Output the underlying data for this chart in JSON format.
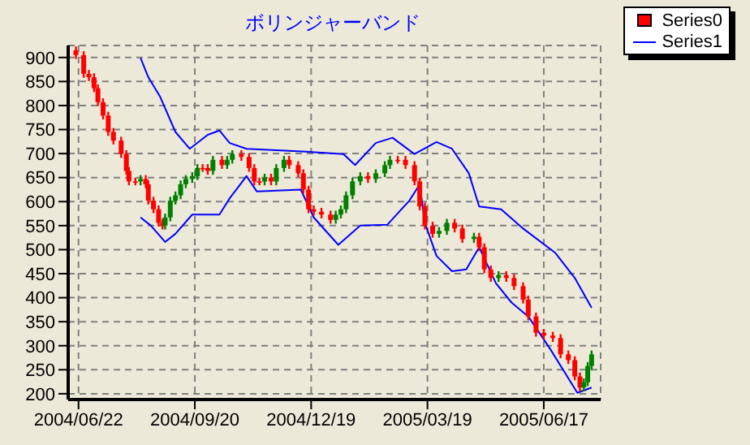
{
  "chart_data": {
    "type": "candlestick",
    "title": "ボリンジャーバンド",
    "grid": true,
    "legend": "top right",
    "xlim": [
      "2004-06-14",
      "2005-07-31"
    ],
    "xticks": [
      {
        "value": "2004-06-22",
        "label": "2004/06/22"
      },
      {
        "value": "2004-09-20",
        "label": "2004/09/20"
      },
      {
        "value": "2004-12-19",
        "label": "2004/12/19"
      },
      {
        "value": "2005-03-19",
        "label": "2005/03/19"
      },
      {
        "value": "2005-06-17",
        "label": "2005/06/17"
      }
    ],
    "ylim": [
      188,
      925
    ],
    "yticks": [
      200,
      250,
      300,
      350,
      400,
      450,
      500,
      550,
      600,
      650,
      700,
      750,
      800,
      850,
      900
    ],
    "series": [
      {
        "name": "Series0",
        "color": "#ff0000",
        "x": [
          "2004-06-20",
          "2004-06-26",
          "2004-06-30",
          "2004-07-04",
          "2004-07-07",
          "2004-07-11",
          "2004-07-15",
          "2004-07-19",
          "2004-07-25",
          "2004-07-29",
          "2004-07-31",
          "2004-08-05",
          "2004-08-09",
          "2004-08-13",
          "2004-08-15",
          "2004-08-19",
          "2004-08-23",
          "2004-08-26",
          "2004-08-28",
          "2004-09-01",
          "2004-09-05",
          "2004-09-09",
          "2004-09-13",
          "2004-09-18",
          "2004-09-22",
          "2004-09-26",
          "2004-09-30",
          "2004-10-04",
          "2004-10-11",
          "2004-10-15",
          "2004-10-19",
          "2004-10-26",
          "2004-11-01",
          "2004-11-05",
          "2004-11-09",
          "2004-11-13",
          "2004-11-18",
          "2004-11-22",
          "2004-11-28",
          "2004-12-02",
          "2004-12-09",
          "2004-12-13",
          "2004-12-17",
          "2004-12-21",
          "2004-12-27",
          "2005-01-03",
          "2005-01-07",
          "2005-01-11",
          "2005-01-15",
          "2005-01-20",
          "2005-01-26",
          "2005-02-01",
          "2005-02-07",
          "2005-02-14",
          "2005-02-18",
          "2005-02-24",
          "2005-03-02",
          "2005-03-09",
          "2005-03-13",
          "2005-03-17",
          "2005-03-23",
          "2005-03-28",
          "2005-04-03",
          "2005-04-09",
          "2005-04-15",
          "2005-04-24",
          "2005-04-28",
          "2005-05-02",
          "2005-05-07",
          "2005-05-13",
          "2005-05-19",
          "2005-05-25",
          "2005-06-01",
          "2005-06-05",
          "2005-06-11",
          "2005-06-17",
          "2005-06-24",
          "2005-06-30",
          "2005-07-06",
          "2005-07-11",
          "2005-07-15",
          "2005-07-18",
          "2005-07-21",
          "2005-07-24"
        ],
        "ohlc": [
          [
            915,
            923,
            897,
            905
          ],
          [
            905,
            913,
            858,
            866
          ],
          [
            866,
            874,
            851,
            859
          ],
          [
            859,
            867,
            828,
            836
          ],
          [
            836,
            844,
            799,
            807
          ],
          [
            807,
            815,
            771,
            779
          ],
          [
            779,
            787,
            737,
            745
          ],
          [
            745,
            753,
            719,
            727
          ],
          [
            727,
            735,
            691,
            699
          ],
          [
            699,
            707,
            656,
            664
          ],
          [
            664,
            672,
            634,
            642
          ],
          [
            642,
            650,
            634,
            642
          ],
          [
            642,
            655,
            634,
            647
          ],
          [
            647,
            655,
            628,
            636
          ],
          [
            636,
            644,
            594,
            602
          ],
          [
            602,
            610,
            576,
            584
          ],
          [
            584,
            592,
            548,
            556
          ],
          [
            556,
            564,
            542,
            550
          ],
          [
            550,
            575,
            542,
            567
          ],
          [
            567,
            610,
            559,
            602
          ],
          [
            602,
            621,
            594,
            613
          ],
          [
            613,
            644,
            605,
            636
          ],
          [
            636,
            655,
            628,
            647
          ],
          [
            647,
            661,
            639,
            653
          ],
          [
            653,
            678,
            645,
            670
          ],
          [
            670,
            678,
            662,
            670
          ],
          [
            670,
            678,
            656,
            664
          ],
          [
            664,
            695,
            656,
            687
          ],
          [
            687,
            695,
            668,
            676
          ],
          [
            676,
            695,
            668,
            687
          ],
          [
            687,
            707,
            679,
            699
          ],
          [
            699,
            707,
            685,
            693
          ],
          [
            693,
            701,
            662,
            670
          ],
          [
            670,
            678,
            634,
            642
          ],
          [
            642,
            650,
            634,
            642
          ],
          [
            642,
            658,
            634,
            650
          ],
          [
            650,
            658,
            634,
            642
          ],
          [
            642,
            678,
            634,
            670
          ],
          [
            670,
            695,
            662,
            687
          ],
          [
            687,
            695,
            668,
            676
          ],
          [
            676,
            684,
            651,
            659
          ],
          [
            659,
            667,
            617,
            625
          ],
          [
            625,
            633,
            576,
            584
          ],
          [
            584,
            592,
            571,
            579
          ],
          [
            579,
            587,
            565,
            573
          ],
          [
            573,
            581,
            554,
            562
          ],
          [
            562,
            581,
            554,
            573
          ],
          [
            573,
            592,
            565,
            584
          ],
          [
            584,
            621,
            576,
            613
          ],
          [
            613,
            650,
            605,
            642
          ],
          [
            642,
            661,
            634,
            653
          ],
          [
            653,
            661,
            639,
            647
          ],
          [
            647,
            667,
            639,
            659
          ],
          [
            659,
            684,
            651,
            676
          ],
          [
            676,
            695,
            668,
            687
          ],
          [
            687,
            695,
            679,
            687
          ],
          [
            687,
            695,
            668,
            676
          ],
          [
            676,
            684,
            634,
            642
          ],
          [
            642,
            650,
            582,
            590
          ],
          [
            590,
            598,
            542,
            550
          ],
          [
            550,
            558,
            525,
            533
          ],
          [
            533,
            547,
            525,
            539
          ],
          [
            539,
            564,
            531,
            556
          ],
          [
            556,
            564,
            536,
            544
          ],
          [
            544,
            552,
            514,
            522
          ],
          [
            522,
            535,
            514,
            527
          ],
          [
            527,
            535,
            497,
            505
          ],
          [
            505,
            513,
            451,
            459
          ],
          [
            459,
            467,
            433,
            441
          ],
          [
            441,
            455,
            433,
            447
          ],
          [
            447,
            455,
            433,
            441
          ],
          [
            441,
            449,
            416,
            424
          ],
          [
            424,
            432,
            388,
            396
          ],
          [
            396,
            404,
            353,
            361
          ],
          [
            361,
            369,
            319,
            327
          ],
          [
            327,
            335,
            313,
            321
          ],
          [
            321,
            329,
            308,
            316
          ],
          [
            316,
            324,
            274,
            282
          ],
          [
            282,
            290,
            262,
            270
          ],
          [
            270,
            278,
            228,
            236
          ],
          [
            236,
            244,
            205,
            213
          ],
          [
            213,
            232,
            205,
            224
          ],
          [
            224,
            266,
            216,
            258
          ],
          [
            258,
            290,
            250,
            282
          ]
        ],
        "colors": [
          "#ff0000",
          "#ff0000",
          "#ff0000",
          "#ff0000",
          "#ff0000",
          "#ff0000",
          "#ff0000",
          "#ff0000",
          "#ff0000",
          "#ff0000",
          "#ff0000",
          "#ff0000",
          "#008000",
          "#ff0000",
          "#ff0000",
          "#ff0000",
          "#ff0000",
          "#ff0000",
          "#008000",
          "#008000",
          "#008000",
          "#008000",
          "#008000",
          "#008000",
          "#008000",
          "#ff0000",
          "#ff0000",
          "#008000",
          "#ff0000",
          "#008000",
          "#008000",
          "#ff0000",
          "#ff0000",
          "#ff0000",
          "#ff0000",
          "#008000",
          "#ff0000",
          "#008000",
          "#008000",
          "#ff0000",
          "#ff0000",
          "#ff0000",
          "#ff0000",
          "#ff0000",
          "#ff0000",
          "#ff0000",
          "#008000",
          "#008000",
          "#008000",
          "#008000",
          "#008000",
          "#ff0000",
          "#008000",
          "#008000",
          "#008000",
          "#ff0000",
          "#ff0000",
          "#ff0000",
          "#ff0000",
          "#ff0000",
          "#ff0000",
          "#008000",
          "#008000",
          "#ff0000",
          "#ff0000",
          "#008000",
          "#ff0000",
          "#ff0000",
          "#ff0000",
          "#008000",
          "#ff0000",
          "#ff0000",
          "#ff0000",
          "#ff0000",
          "#ff0000",
          "#ff0000",
          "#ff0000",
          "#ff0000",
          "#ff0000",
          "#ff0000",
          "#ff0000",
          "#008000",
          "#008000",
          "#008000"
        ]
      },
      {
        "name": "Series1",
        "type": "line",
        "color": "#0000ff",
        "x": [
          "2004-08-09",
          "2004-08-15",
          "2004-08-24",
          "2004-09-05",
          "2004-09-16",
          "2004-09-30",
          "2004-10-09",
          "2004-10-17",
          "2004-10-30",
          "2004-12-15",
          "2005-01-13",
          "2005-01-22",
          "2005-02-07",
          "2005-02-20",
          "2005-03-09",
          "2005-03-26",
          "2005-04-07",
          "2005-04-20",
          "2005-04-28",
          "2005-05-15",
          "2005-06-01",
          "2005-06-26",
          "2005-07-11",
          "2005-07-24"
        ],
        "values": [
          899,
          859,
          819,
          745,
          710,
          739,
          748,
          722,
          710,
          704,
          699,
          676,
          722,
          733,
          699,
          724,
          710,
          659,
          590,
          584,
          544,
          493,
          441,
          379
        ]
      },
      {
        "type": "line",
        "color": "#0000ff",
        "x": [
          "2004-08-09",
          "2004-08-17",
          "2004-08-28",
          "2004-09-05",
          "2004-09-18",
          "2004-10-09",
          "2004-10-17",
          "2004-10-30",
          "2004-11-07",
          "2004-12-11",
          "2004-12-21",
          "2005-01-09",
          "2005-01-26",
          "2005-02-16",
          "2005-03-05",
          "2005-03-13",
          "2005-03-17",
          "2005-03-26",
          "2005-04-07",
          "2005-04-18",
          "2005-04-28",
          "2005-05-11",
          "2005-05-23",
          "2005-06-05",
          "2005-06-22",
          "2005-07-13",
          "2005-07-24"
        ],
        "values": [
          567,
          550,
          516,
          533,
          573,
          573,
          607,
          653,
          621,
          625,
          567,
          510,
          550,
          552,
          602,
          636,
          556,
          487,
          455,
          459,
          505,
          430,
          390,
          361,
          293,
          202,
          213
        ]
      }
    ]
  }
}
